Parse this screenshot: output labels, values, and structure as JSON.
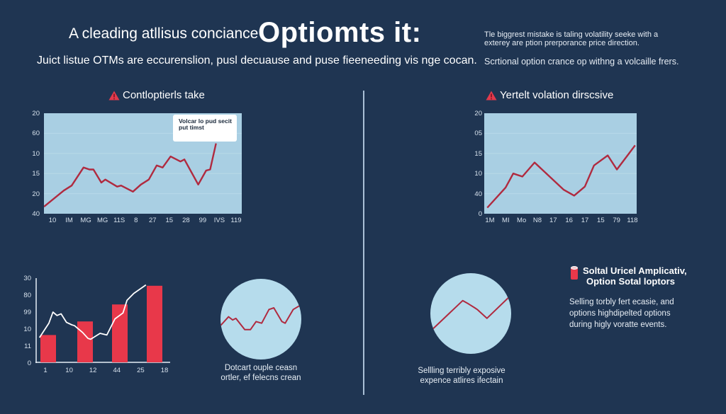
{
  "header": {
    "headline_small": "A cleading atllisus conciance",
    "headline_big": "Optiomts it:",
    "subheadline": "Juict  listue OTMs are eccurenslion, pusl decuause and puse fieeneeding vis nge cocan.",
    "right_intro_line1": "Tle biggrest mistake is taling volatility seeke with a exterey are ption prerporance price direction.",
    "right_intro_line2": "Scrtional option crance op withng a volcaille frers."
  },
  "sections": {
    "left_title": "Contloptierls take",
    "right_title": "Yertelt volation dirscsive",
    "left_callout": "Volcar lo pud secit put timst",
    "circle1_caption_line1": "Dotcart ouple ceasn",
    "circle1_caption_line2": "ortler, ef felecns crean",
    "circle2_caption_line1": "Sellling terribly exposive",
    "circle2_caption_line2": "expence atlires ifectain",
    "note_title_line1": "Soltal Uricel Amplicativ,",
    "note_title_line2": "Option Sotal loptors",
    "note_body_line1": "Selling torbly fert ecasie, and",
    "note_body_line2": "options highdipelted options",
    "note_body_line3": "during higly voratte events."
  },
  "icons": {
    "warning": "warning-triangle-icon",
    "cylinder": "red-cylinder-icon"
  },
  "colors": {
    "background": "#1f3552",
    "plot_bg": "#a9cfe3",
    "line": "#b02a3f",
    "bar": "#e8384a",
    "overlay_line": "#ffffff",
    "circle_fill": "#b6dcec",
    "divider": "#a9bfd6"
  },
  "chart_data": [
    {
      "id": "chart-left-line",
      "type": "line",
      "title": "Contloptierls take",
      "yticks": [
        "20",
        "60",
        "10",
        "15",
        "20",
        "40"
      ],
      "xticks": [
        "10",
        "IM",
        "MG",
        "MG",
        "11S",
        "8",
        "27",
        "15",
        "28",
        "99",
        "IVS",
        "119"
      ],
      "annotation": "Volcar lo pud secit put timst",
      "series": [
        {
          "name": "price",
          "points_pct": [
            [
              0,
              7
            ],
            [
              10,
              23
            ],
            [
              14,
              28
            ],
            [
              20,
              46
            ],
            [
              23,
              44
            ],
            [
              25,
              44
            ],
            [
              29,
              31
            ],
            [
              31,
              34
            ],
            [
              37,
              27
            ],
            [
              39,
              28
            ],
            [
              45,
              22
            ],
            [
              49,
              29
            ],
            [
              53,
              34
            ],
            [
              57,
              48
            ],
            [
              60,
              46
            ],
            [
              64,
              57
            ],
            [
              69,
              52
            ],
            [
              71,
              54
            ],
            [
              78,
              29
            ],
            [
              82,
              43
            ],
            [
              84,
              44
            ],
            [
              87,
              70
            ]
          ]
        }
      ],
      "grid": true
    },
    {
      "id": "chart-right-line",
      "type": "line",
      "title": "Yertelt volation dirscsive",
      "yticks": [
        "20",
        "05",
        "15",
        "10",
        "40",
        "0"
      ],
      "xticks": [
        "1M",
        "MI",
        "Mo",
        "N8",
        "17",
        "16",
        "17",
        "15",
        "79",
        "118"
      ],
      "series": [
        {
          "name": "volatility",
          "points_pct": [
            [
              2,
              6
            ],
            [
              14,
              26
            ],
            [
              19,
              40
            ],
            [
              25,
              37
            ],
            [
              33,
              51
            ],
            [
              52,
              24
            ],
            [
              59,
              18
            ],
            [
              66,
              27
            ],
            [
              72,
              48
            ],
            [
              81,
              58
            ],
            [
              87,
              44
            ],
            [
              99,
              68
            ]
          ]
        }
      ],
      "grid": true
    },
    {
      "id": "chart-bottom-bar",
      "type": "bar",
      "yticks": [
        "30",
        "80",
        "99",
        "10",
        "11",
        "0"
      ],
      "categories": [
        "1",
        "10",
        "12",
        "44",
        "25",
        "18"
      ],
      "bars": [
        {
          "x_label": "1",
          "height_pct": 33
        },
        {
          "x_label": "12",
          "height_pct": 49
        },
        {
          "x_label": "25",
          "height_pct": 69
        },
        {
          "x_label": "18",
          "height_pct": 91
        }
      ],
      "overlay_line_pct": [
        [
          3,
          30
        ],
        [
          10,
          47
        ],
        [
          13,
          60
        ],
        [
          16,
          56
        ],
        [
          19,
          58
        ],
        [
          23,
          48
        ],
        [
          27,
          45
        ],
        [
          29,
          44
        ],
        [
          35,
          36
        ],
        [
          39,
          29
        ],
        [
          41,
          28
        ],
        [
          48,
          35
        ],
        [
          53,
          33
        ],
        [
          59,
          52
        ],
        [
          65,
          59
        ],
        [
          68,
          74
        ],
        [
          73,
          82
        ],
        [
          82,
          92
        ]
      ]
    },
    {
      "id": "chart-circle-1",
      "type": "line",
      "caption": "Dotcart ouple ceasn ortler, ef felecns crean",
      "points_pct": [
        [
          0,
          42
        ],
        [
          10,
          53
        ],
        [
          15,
          49
        ],
        [
          19,
          51
        ],
        [
          30,
          37
        ],
        [
          37,
          37
        ],
        [
          44,
          47
        ],
        [
          51,
          45
        ],
        [
          60,
          62
        ],
        [
          66,
          64
        ],
        [
          76,
          47
        ],
        [
          80,
          45
        ],
        [
          90,
          62
        ],
        [
          100,
          68
        ]
      ]
    },
    {
      "id": "chart-circle-2",
      "type": "line",
      "caption": "Sellling terribly exposive expence atlires ifectain",
      "points_pct": [
        [
          0,
          28
        ],
        [
          40,
          66
        ],
        [
          47,
          62
        ],
        [
          55,
          57
        ],
        [
          58,
          55
        ],
        [
          70,
          44
        ],
        [
          100,
          73
        ]
      ]
    }
  ]
}
